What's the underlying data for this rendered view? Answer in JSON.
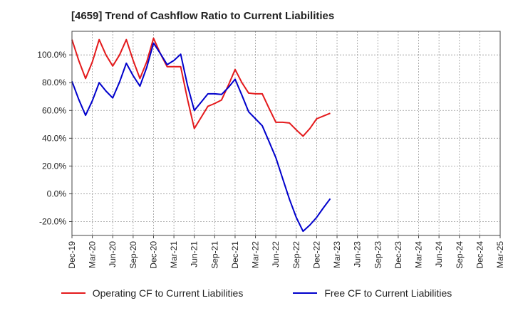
{
  "chart_data": {
    "type": "line",
    "title": "[4659]  Trend of Cashflow Ratio to Current Liabilities",
    "x_ticks": [
      "Dec-19",
      "Mar-20",
      "Jun-20",
      "Sep-20",
      "Dec-20",
      "Mar-21",
      "Jun-21",
      "Sep-21",
      "Dec-21",
      "Mar-22",
      "Jun-22",
      "Sep-22",
      "Dec-22",
      "Mar-23",
      "Jun-23",
      "Sep-23",
      "Dec-23",
      "Mar-24",
      "Jun-24",
      "Sep-24",
      "Dec-24",
      "Mar-25"
    ],
    "y_ticks": [
      "-20.0%",
      "0.0%",
      "20.0%",
      "40.0%",
      "60.0%",
      "80.0%",
      "100.0%"
    ],
    "y_tick_values": [
      -20,
      0,
      20,
      40,
      60,
      80,
      100
    ],
    "ylim": [
      -30,
      117
    ],
    "grid": true,
    "legend_position": "bottom",
    "series": [
      {
        "name": "Operating CF to Current Liabilities",
        "color": "#e41a1c",
        "values": [
          111,
          96,
          83,
          95,
          111,
          100,
          92,
          100,
          111,
          96,
          83,
          95,
          112,
          101,
          91.5,
          91.5,
          91.5,
          68,
          47,
          55,
          63,
          65,
          67.5,
          78,
          89.5,
          80,
          72.5,
          72,
          72,
          61.5,
          51.5,
          51.5,
          51,
          46,
          41.5,
          47,
          54,
          56,
          58
        ]
      },
      {
        "name": "Free CF to Current Liabilities",
        "color": "#0000cc",
        "values": [
          81,
          68,
          56.5,
          67,
          80,
          74,
          69,
          80.5,
          94,
          85,
          77.5,
          91,
          108.5,
          101,
          93,
          96,
          100.5,
          78,
          60,
          66,
          72,
          72,
          71.5,
          76.5,
          82.5,
          71,
          59,
          54,
          49,
          37.5,
          26,
          11,
          -4,
          -17,
          -27,
          -22.5,
          -17,
          -10,
          -3.5
        ]
      }
    ]
  }
}
